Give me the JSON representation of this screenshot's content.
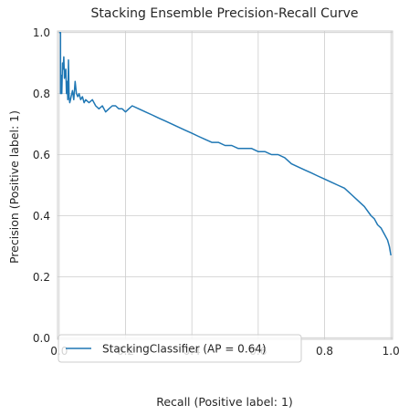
{
  "chart_data": {
    "type": "line",
    "title": "Stacking Ensemble Precision-Recall Curve",
    "xlabel": "Recall (Positive label: 1)",
    "ylabel": "Precision (Positive label: 1)",
    "xlim": [
      -0.005,
      1.005
    ],
    "ylim": [
      -0.005,
      1.005
    ],
    "xticks": [
      0.0,
      0.2,
      0.4,
      0.6,
      0.8,
      1.0
    ],
    "yticks": [
      0.0,
      0.2,
      0.4,
      0.6,
      0.8,
      1.0
    ],
    "xtick_labels": [
      "0.0",
      "0.2",
      "0.4",
      "0.6",
      "0.8",
      "1.0"
    ],
    "ytick_labels": [
      "0.0",
      "0.2",
      "0.4",
      "0.6",
      "0.8",
      "1.0"
    ],
    "grid": true,
    "legend_position": "lower-left",
    "series": [
      {
        "name": "StackingClassifier (AP = 0.64)",
        "color": "#1f77b4",
        "x": [
          0.0,
          0.0,
          0.004,
          0.004,
          0.006,
          0.008,
          0.01,
          0.012,
          0.014,
          0.016,
          0.018,
          0.02,
          0.022,
          0.024,
          0.026,
          0.028,
          0.03,
          0.032,
          0.034,
          0.036,
          0.04,
          0.044,
          0.048,
          0.052,
          0.056,
          0.06,
          0.065,
          0.07,
          0.075,
          0.08,
          0.09,
          0.1,
          0.11,
          0.12,
          0.13,
          0.14,
          0.15,
          0.16,
          0.17,
          0.18,
          0.19,
          0.2,
          0.21,
          0.22,
          0.24,
          0.26,
          0.28,
          0.3,
          0.32,
          0.34,
          0.36,
          0.38,
          0.4,
          0.42,
          0.44,
          0.46,
          0.48,
          0.5,
          0.52,
          0.54,
          0.56,
          0.58,
          0.6,
          0.62,
          0.64,
          0.66,
          0.68,
          0.7,
          0.72,
          0.74,
          0.76,
          0.78,
          0.8,
          0.82,
          0.84,
          0.86,
          0.88,
          0.9,
          0.92,
          0.94,
          0.95,
          0.96,
          0.97,
          0.98,
          0.99,
          0.995,
          1.0
        ],
        "y": [
          1.0,
          1.0,
          1.0,
          0.8,
          0.86,
          0.8,
          0.9,
          0.88,
          0.92,
          0.85,
          0.87,
          0.88,
          0.8,
          0.84,
          0.78,
          0.91,
          0.79,
          0.77,
          0.78,
          0.79,
          0.81,
          0.78,
          0.84,
          0.8,
          0.79,
          0.8,
          0.78,
          0.79,
          0.77,
          0.78,
          0.77,
          0.78,
          0.76,
          0.75,
          0.76,
          0.74,
          0.75,
          0.76,
          0.76,
          0.75,
          0.75,
          0.74,
          0.75,
          0.76,
          0.75,
          0.74,
          0.73,
          0.72,
          0.71,
          0.7,
          0.69,
          0.68,
          0.67,
          0.66,
          0.65,
          0.64,
          0.64,
          0.63,
          0.63,
          0.62,
          0.62,
          0.62,
          0.61,
          0.61,
          0.6,
          0.6,
          0.59,
          0.57,
          0.56,
          0.55,
          0.54,
          0.53,
          0.52,
          0.51,
          0.5,
          0.49,
          0.47,
          0.45,
          0.43,
          0.4,
          0.39,
          0.37,
          0.36,
          0.34,
          0.32,
          0.3,
          0.27
        ]
      }
    ]
  }
}
